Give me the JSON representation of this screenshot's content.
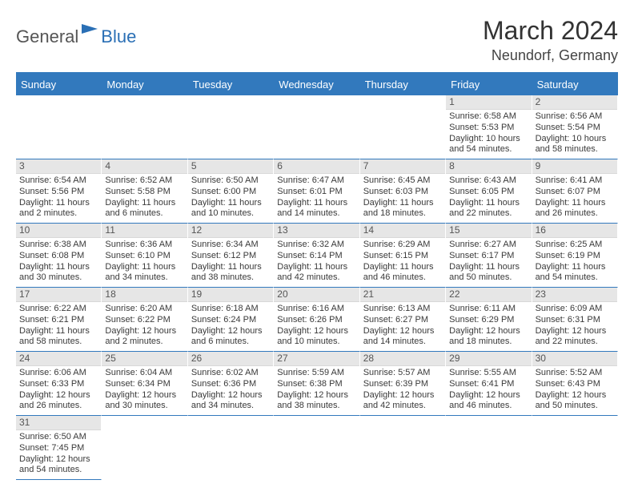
{
  "brand": {
    "part1": "General",
    "part2": "Blue"
  },
  "title": "March 2024",
  "location": "Neundorf, Germany",
  "dayHeaders": [
    "Sunday",
    "Monday",
    "Tuesday",
    "Wednesday",
    "Thursday",
    "Friday",
    "Saturday"
  ],
  "colors": {
    "headerBar": "#3279bd",
    "dayNumBg": "#e6e6e6"
  },
  "days": [
    {
      "n": "1",
      "sr": "Sunrise: 6:58 AM",
      "ss": "Sunset: 5:53 PM",
      "dl": "Daylight: 10 hours and 54 minutes."
    },
    {
      "n": "2",
      "sr": "Sunrise: 6:56 AM",
      "ss": "Sunset: 5:54 PM",
      "dl": "Daylight: 10 hours and 58 minutes."
    },
    {
      "n": "3",
      "sr": "Sunrise: 6:54 AM",
      "ss": "Sunset: 5:56 PM",
      "dl": "Daylight: 11 hours and 2 minutes."
    },
    {
      "n": "4",
      "sr": "Sunrise: 6:52 AM",
      "ss": "Sunset: 5:58 PM",
      "dl": "Daylight: 11 hours and 6 minutes."
    },
    {
      "n": "5",
      "sr": "Sunrise: 6:50 AM",
      "ss": "Sunset: 6:00 PM",
      "dl": "Daylight: 11 hours and 10 minutes."
    },
    {
      "n": "6",
      "sr": "Sunrise: 6:47 AM",
      "ss": "Sunset: 6:01 PM",
      "dl": "Daylight: 11 hours and 14 minutes."
    },
    {
      "n": "7",
      "sr": "Sunrise: 6:45 AM",
      "ss": "Sunset: 6:03 PM",
      "dl": "Daylight: 11 hours and 18 minutes."
    },
    {
      "n": "8",
      "sr": "Sunrise: 6:43 AM",
      "ss": "Sunset: 6:05 PM",
      "dl": "Daylight: 11 hours and 22 minutes."
    },
    {
      "n": "9",
      "sr": "Sunrise: 6:41 AM",
      "ss": "Sunset: 6:07 PM",
      "dl": "Daylight: 11 hours and 26 minutes."
    },
    {
      "n": "10",
      "sr": "Sunrise: 6:38 AM",
      "ss": "Sunset: 6:08 PM",
      "dl": "Daylight: 11 hours and 30 minutes."
    },
    {
      "n": "11",
      "sr": "Sunrise: 6:36 AM",
      "ss": "Sunset: 6:10 PM",
      "dl": "Daylight: 11 hours and 34 minutes."
    },
    {
      "n": "12",
      "sr": "Sunrise: 6:34 AM",
      "ss": "Sunset: 6:12 PM",
      "dl": "Daylight: 11 hours and 38 minutes."
    },
    {
      "n": "13",
      "sr": "Sunrise: 6:32 AM",
      "ss": "Sunset: 6:14 PM",
      "dl": "Daylight: 11 hours and 42 minutes."
    },
    {
      "n": "14",
      "sr": "Sunrise: 6:29 AM",
      "ss": "Sunset: 6:15 PM",
      "dl": "Daylight: 11 hours and 46 minutes."
    },
    {
      "n": "15",
      "sr": "Sunrise: 6:27 AM",
      "ss": "Sunset: 6:17 PM",
      "dl": "Daylight: 11 hours and 50 minutes."
    },
    {
      "n": "16",
      "sr": "Sunrise: 6:25 AM",
      "ss": "Sunset: 6:19 PM",
      "dl": "Daylight: 11 hours and 54 minutes."
    },
    {
      "n": "17",
      "sr": "Sunrise: 6:22 AM",
      "ss": "Sunset: 6:21 PM",
      "dl": "Daylight: 11 hours and 58 minutes."
    },
    {
      "n": "18",
      "sr": "Sunrise: 6:20 AM",
      "ss": "Sunset: 6:22 PM",
      "dl": "Daylight: 12 hours and 2 minutes."
    },
    {
      "n": "19",
      "sr": "Sunrise: 6:18 AM",
      "ss": "Sunset: 6:24 PM",
      "dl": "Daylight: 12 hours and 6 minutes."
    },
    {
      "n": "20",
      "sr": "Sunrise: 6:16 AM",
      "ss": "Sunset: 6:26 PM",
      "dl": "Daylight: 12 hours and 10 minutes."
    },
    {
      "n": "21",
      "sr": "Sunrise: 6:13 AM",
      "ss": "Sunset: 6:27 PM",
      "dl": "Daylight: 12 hours and 14 minutes."
    },
    {
      "n": "22",
      "sr": "Sunrise: 6:11 AM",
      "ss": "Sunset: 6:29 PM",
      "dl": "Daylight: 12 hours and 18 minutes."
    },
    {
      "n": "23",
      "sr": "Sunrise: 6:09 AM",
      "ss": "Sunset: 6:31 PM",
      "dl": "Daylight: 12 hours and 22 minutes."
    },
    {
      "n": "24",
      "sr": "Sunrise: 6:06 AM",
      "ss": "Sunset: 6:33 PM",
      "dl": "Daylight: 12 hours and 26 minutes."
    },
    {
      "n": "25",
      "sr": "Sunrise: 6:04 AM",
      "ss": "Sunset: 6:34 PM",
      "dl": "Daylight: 12 hours and 30 minutes."
    },
    {
      "n": "26",
      "sr": "Sunrise: 6:02 AM",
      "ss": "Sunset: 6:36 PM",
      "dl": "Daylight: 12 hours and 34 minutes."
    },
    {
      "n": "27",
      "sr": "Sunrise: 5:59 AM",
      "ss": "Sunset: 6:38 PM",
      "dl": "Daylight: 12 hours and 38 minutes."
    },
    {
      "n": "28",
      "sr": "Sunrise: 5:57 AM",
      "ss": "Sunset: 6:39 PM",
      "dl": "Daylight: 12 hours and 42 minutes."
    },
    {
      "n": "29",
      "sr": "Sunrise: 5:55 AM",
      "ss": "Sunset: 6:41 PM",
      "dl": "Daylight: 12 hours and 46 minutes."
    },
    {
      "n": "30",
      "sr": "Sunrise: 5:52 AM",
      "ss": "Sunset: 6:43 PM",
      "dl": "Daylight: 12 hours and 50 minutes."
    },
    {
      "n": "31",
      "sr": "Sunrise: 6:50 AM",
      "ss": "Sunset: 7:45 PM",
      "dl": "Daylight: 12 hours and 54 minutes."
    }
  ],
  "leadingBlanks": 5
}
